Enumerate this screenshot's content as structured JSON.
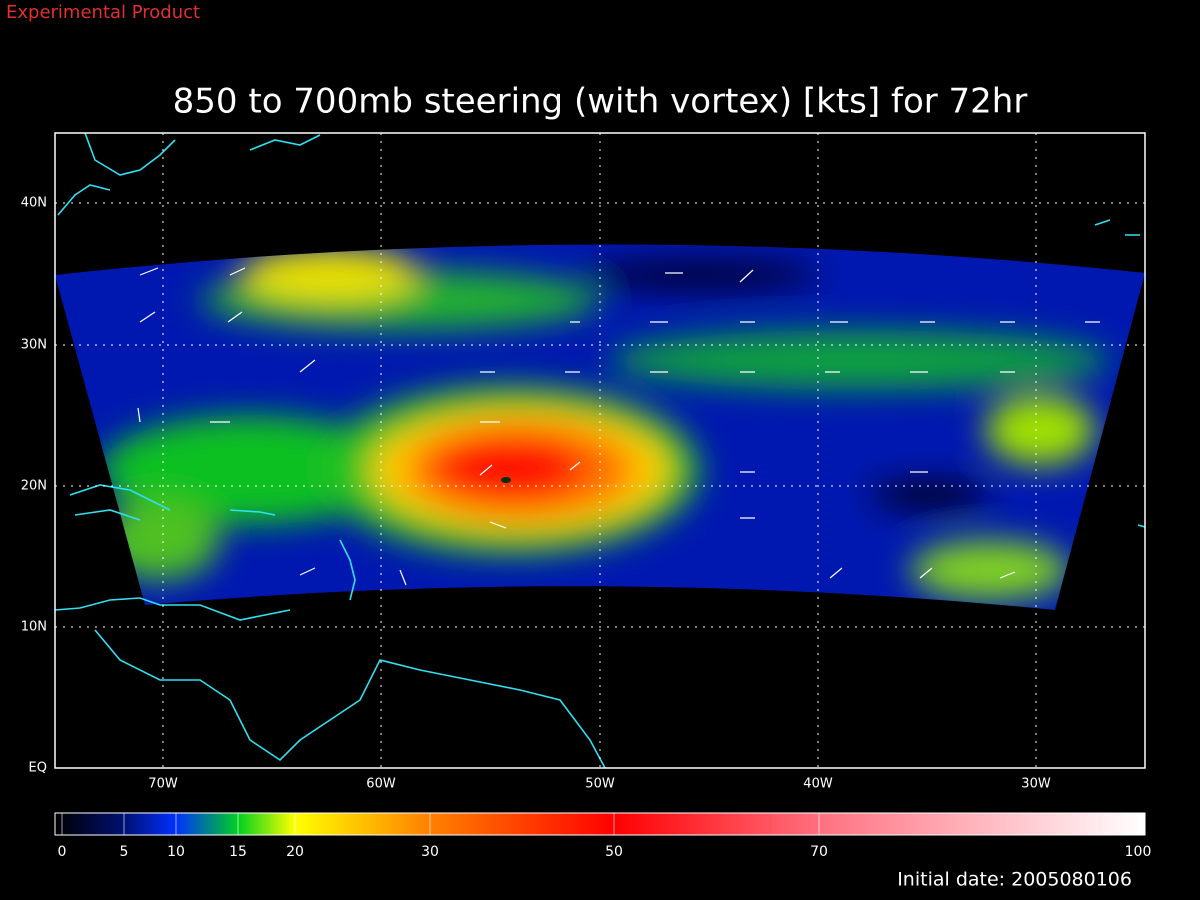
{
  "header": {
    "product": "Experimental Product",
    "title": "850 to 700mb steering (with vortex) [kts] for 72hr"
  },
  "map": {
    "lat_labels": [
      "40N",
      "30N",
      "20N",
      "10N",
      "EQ"
    ],
    "lon_labels": [
      "70W",
      "60W",
      "50W",
      "40W",
      "30W"
    ]
  },
  "colorbar": {
    "labels": [
      "0",
      "5",
      "10",
      "15",
      "20",
      "30",
      "50",
      "70",
      "100"
    ]
  },
  "footer": {
    "initial_date": "Initial date: 2005080106"
  }
}
